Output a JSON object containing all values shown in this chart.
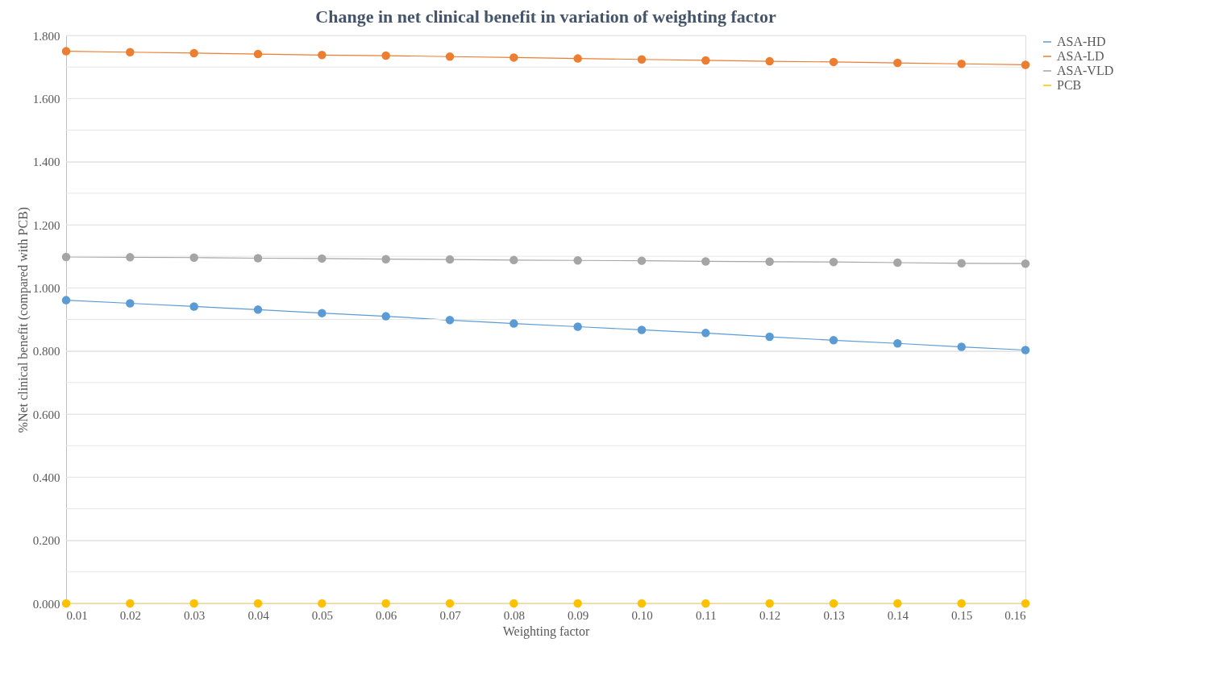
{
  "chart_data": {
    "type": "line",
    "title": "Change in net clinical benefit in variation of weighting factor",
    "xlabel": "Weighting  factor",
    "ylabel": "%Net clinical benefit (compared with PCB)",
    "categories": [
      "0.01",
      "0.02",
      "0.03",
      "0.04",
      "0.05",
      "0.06",
      "0.07",
      "0.08",
      "0.09",
      "0.10",
      "0.11",
      "0.12",
      "0.13",
      "0.14",
      "0.15",
      "0.16"
    ],
    "series": [
      {
        "name": "ASA-HD",
        "color": "#5b9bd5",
        "values": [
          0.961,
          0.951,
          0.941,
          0.931,
          0.92,
          0.91,
          0.898,
          0.887,
          0.877,
          0.867,
          0.857,
          0.845,
          0.834,
          0.824,
          0.813,
          0.803
        ]
      },
      {
        "name": "ASA-LD",
        "color": "#ed7d31",
        "values": [
          1.75,
          1.747,
          1.744,
          1.741,
          1.738,
          1.736,
          1.733,
          1.73,
          1.727,
          1.724,
          1.721,
          1.718,
          1.716,
          1.713,
          1.71,
          1.707
        ]
      },
      {
        "name": "ASA-VLD",
        "color": "#a5a5a5",
        "values": [
          1.098,
          1.097,
          1.096,
          1.094,
          1.093,
          1.091,
          1.09,
          1.088,
          1.087,
          1.086,
          1.084,
          1.083,
          1.082,
          1.08,
          1.078,
          1.077
        ]
      },
      {
        "name": "PCB",
        "color": "#ffc000",
        "values": [
          0,
          0,
          0,
          0,
          0,
          0,
          0,
          0,
          0,
          0,
          0,
          0,
          0,
          0,
          0,
          0
        ]
      }
    ],
    "ylim": [
      0,
      1.8
    ],
    "yticks": [
      {
        "value": 0,
        "label": "0.000"
      },
      {
        "value": 0.1,
        "label": null
      },
      {
        "value": 0.2,
        "label": "0.200"
      },
      {
        "value": 0.3,
        "label": null
      },
      {
        "value": 0.4,
        "label": "0.400"
      },
      {
        "value": 0.5,
        "label": null
      },
      {
        "value": 0.6,
        "label": "0.600"
      },
      {
        "value": 0.7,
        "label": null
      },
      {
        "value": 0.8,
        "label": "0.800"
      },
      {
        "value": 0.9,
        "label": null
      },
      {
        "value": 1.0,
        "label": "1.000"
      },
      {
        "value": 1.1,
        "label": null
      },
      {
        "value": 1.2,
        "label": "1.200"
      },
      {
        "value": 1.3,
        "label": null
      },
      {
        "value": 1.4,
        "label": "1.400"
      },
      {
        "value": 1.5,
        "label": null
      },
      {
        "value": 1.6,
        "label": "1.600"
      },
      {
        "value": 1.7,
        "label": null
      },
      {
        "value": 1.8,
        "label": "1.800"
      }
    ],
    "grid": "y",
    "legend": "right",
    "marker": "circle",
    "line_style": "solid"
  }
}
